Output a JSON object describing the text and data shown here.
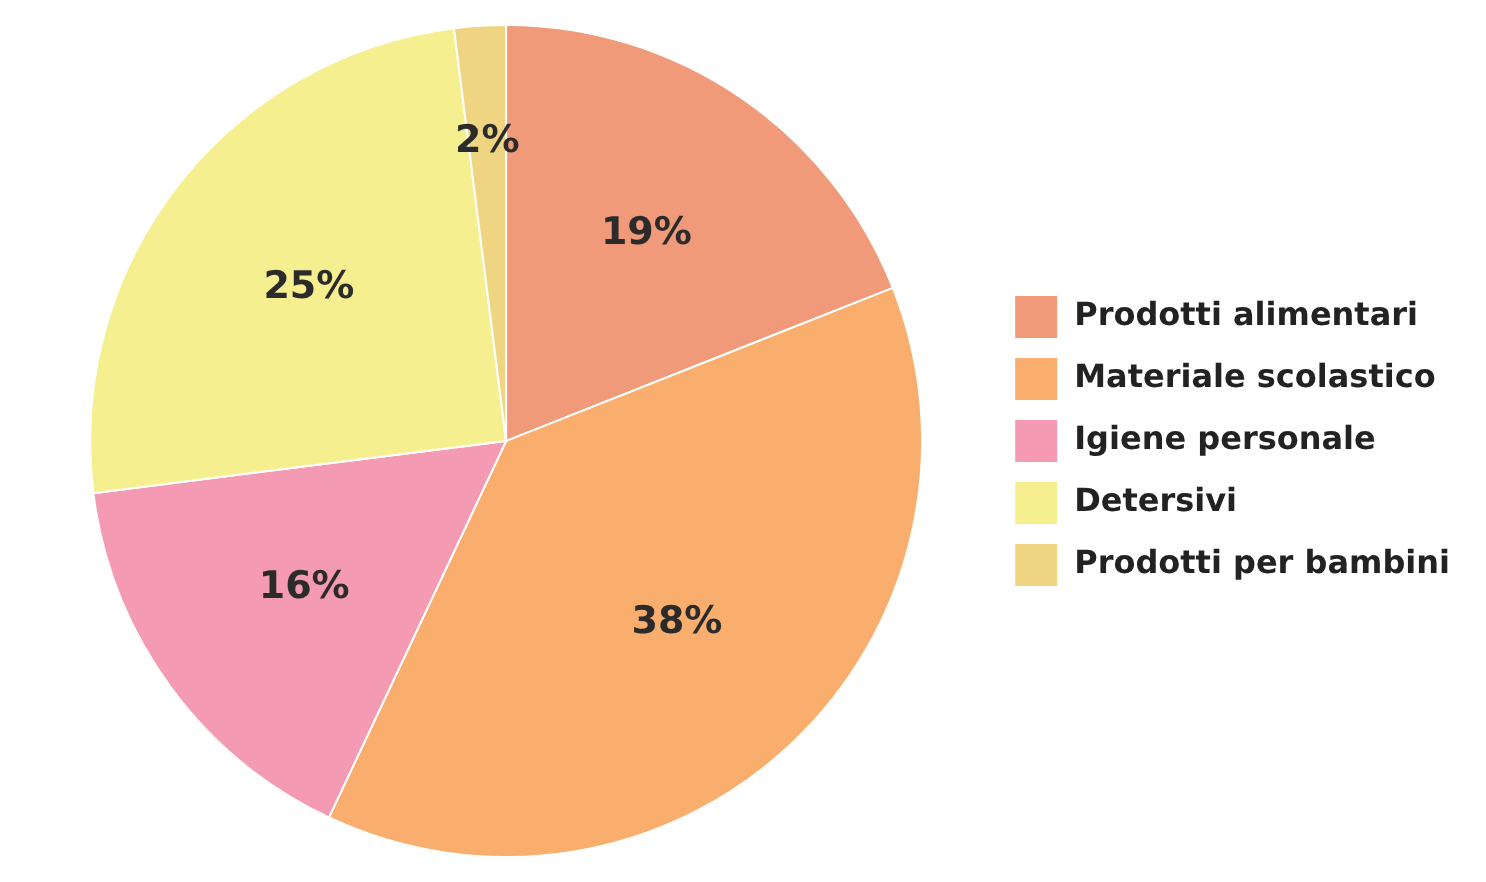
{
  "chart_data": {
    "type": "pie",
    "categories": [
      "Prodotti alimentari",
      "Materiale scolastico",
      "Igiene personale",
      "Detersivi",
      "Prodotti per bambini"
    ],
    "values": [
      19,
      38,
      16,
      25,
      2
    ],
    "colors": [
      "#f09a7a",
      "#f9ae6e",
      "#f59ab3",
      "#f5ef90",
      "#efd482"
    ],
    "value_labels": [
      "19%",
      "38%",
      "16%",
      "25%",
      "2%"
    ],
    "legend": "right"
  }
}
